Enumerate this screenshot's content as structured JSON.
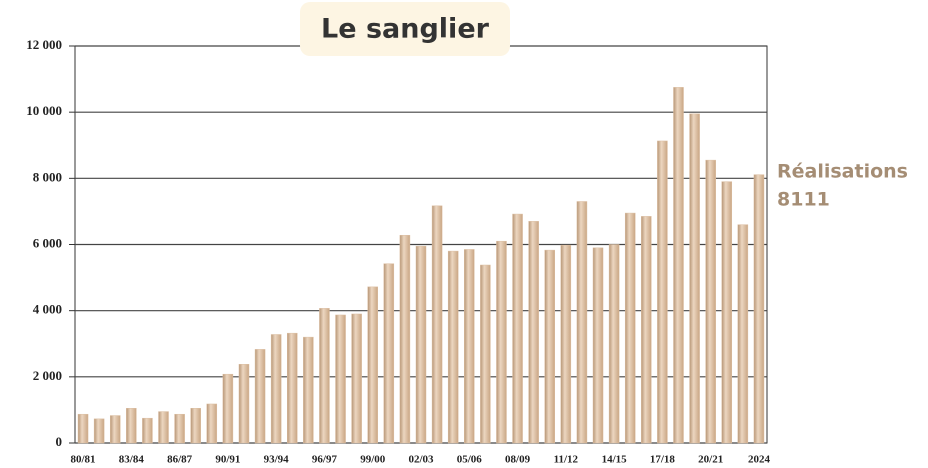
{
  "chart_data": {
    "type": "bar",
    "title": "Le sanglier",
    "categories": [
      "80/81",
      null,
      null,
      "83/84",
      null,
      null,
      "86/87",
      null,
      null,
      "90/91",
      null,
      null,
      "93/94",
      null,
      null,
      "96/97",
      null,
      null,
      "99/00",
      null,
      null,
      "02/03",
      null,
      null,
      "05/06",
      null,
      null,
      "08/09",
      null,
      null,
      "11/12",
      null,
      null,
      "14/15",
      null,
      null,
      "17/18",
      null,
      null,
      "20/21",
      null,
      null,
      "2024"
    ],
    "values": [
      870,
      730,
      830,
      1050,
      750,
      950,
      870,
      1050,
      1180,
      2080,
      2380,
      2830,
      3280,
      3320,
      3200,
      4070,
      3870,
      3900,
      4720,
      5420,
      6280,
      5950,
      7170,
      5800,
      5850,
      5380,
      6100,
      6920,
      6700,
      5830,
      5980,
      7300,
      5900,
      6000,
      6950,
      6850,
      9130,
      10750,
      9950,
      8550,
      7900,
      6600,
      8111
    ],
    "color": "#dcbfa3",
    "ylim": [
      0,
      12000
    ],
    "yticks": [
      0,
      {
        "value": 2000,
        "label": "2 000"
      },
      {
        "value": 4000,
        "label": "4 000"
      },
      {
        "value": 6000,
        "label": "6 000"
      },
      {
        "value": 8000,
        "label": "8 000"
      },
      {
        "value": 10000,
        "label": "10 000"
      },
      {
        "value": 12000,
        "label": "12 000"
      }
    ],
    "grid": true,
    "annotation": [
      "Réalisations",
      "8111"
    ]
  }
}
